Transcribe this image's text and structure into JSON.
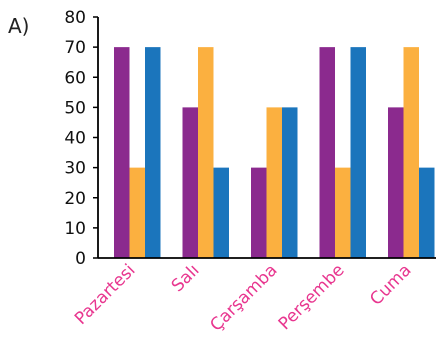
{
  "option_label": "A)",
  "colors": {
    "axis": "#000000",
    "category_text": "#e8368f"
  },
  "chart_data": {
    "type": "bar",
    "title": "",
    "xlabel": "",
    "ylabel": "",
    "ylim": [
      0,
      80
    ],
    "yticks": [
      0,
      10,
      20,
      30,
      40,
      50,
      60,
      70,
      80
    ],
    "grid": false,
    "categories": [
      "Pazartesi",
      "Salı",
      "Çarşamba",
      "Perşembe",
      "Cuma"
    ],
    "series": [
      {
        "color": "#8b2a8e",
        "values": [
          70,
          50,
          30,
          70,
          50
        ]
      },
      {
        "color": "#fbb040",
        "values": [
          30,
          70,
          50,
          30,
          70
        ]
      },
      {
        "color": "#1b75bc",
        "values": [
          70,
          30,
          50,
          70,
          30
        ]
      }
    ]
  }
}
